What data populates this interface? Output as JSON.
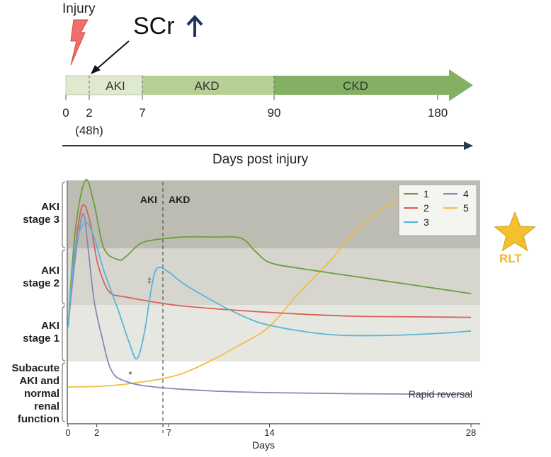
{
  "timeline": {
    "injury_label": "Injury",
    "scr_label": "SCr",
    "phases": [
      "AKI",
      "AKD",
      "CKD"
    ],
    "ticks": [
      "0",
      "2",
      "7",
      "90",
      "180"
    ],
    "tick_note": "(48h)",
    "axis_caption": "Days post injury",
    "colors": {
      "aki": "#dfe9d0",
      "akd": "#b5cf95",
      "ckd": "#84b063",
      "lightning": "#ee6f6b",
      "up_arrow": "#1d3560"
    }
  },
  "chart": {
    "stage_labels": {
      "aki3": [
        "AKI",
        "stage 3"
      ],
      "aki2": [
        "AKI",
        "stage 2"
      ],
      "aki1": [
        "AKI",
        "stage 1"
      ],
      "sub": [
        "Subacute",
        "AKI and",
        "normal",
        "renal",
        "function"
      ]
    },
    "divider_labels": {
      "left": "AKI",
      "right": "AKD"
    },
    "annotations": {
      "star_marker": "*",
      "dagger_marker": "‡",
      "rapid_reversal": "Rapid reversal"
    },
    "rlt_label": "RLT",
    "star_color": "#f5c02d"
  },
  "chart_data": {
    "type": "line",
    "xlabel": "Days",
    "x_ticks": [
      0,
      2,
      7,
      14,
      28
    ],
    "xlim": [
      0,
      28.5
    ],
    "y_bands": [
      "Subacute AKI and normal renal function",
      "AKI stage 1",
      "AKI stage 2",
      "AKI stage 3"
    ],
    "vertical_line_day": 7,
    "series": [
      {
        "name": "1",
        "color": "#6b9e3c",
        "x": [
          0,
          0.5,
          1.2,
          1.8,
          2.5,
          3.5,
          4,
          5,
          6,
          7,
          8,
          10,
          12,
          13,
          14,
          16,
          20,
          24,
          28
        ],
        "y": [
          0.6,
          2.3,
          3.2,
          2.8,
          2.0,
          1.8,
          1.85,
          2.08,
          2.15,
          2.18,
          2.2,
          2.2,
          2.18,
          1.95,
          1.75,
          1.65,
          1.5,
          1.35,
          1.2
        ]
      },
      {
        "name": "2",
        "color": "#d9605a",
        "x": [
          0,
          0.5,
          1.0,
          1.5,
          2,
          2.5,
          3,
          4,
          6,
          8,
          12,
          16,
          20,
          24,
          28
        ],
        "y": [
          0.6,
          2.0,
          2.75,
          2.5,
          1.8,
          1.4,
          1.2,
          1.14,
          1.05,
          0.98,
          0.9,
          0.84,
          0.8,
          0.79,
          0.78
        ]
      },
      {
        "name": "3",
        "color": "#55b6d8",
        "x": [
          0,
          0.5,
          1.2,
          1.8,
          2.5,
          3.5,
          4.3,
          4.8,
          5.3,
          5.8,
          6.2,
          7,
          8,
          10,
          12,
          14,
          18,
          22,
          26,
          28
        ],
        "y": [
          0.6,
          2.0,
          2.45,
          2.2,
          1.6,
          0.9,
          0.3,
          0.05,
          0.5,
          1.3,
          1.65,
          1.58,
          1.38,
          1.08,
          0.82,
          0.64,
          0.48,
          0.46,
          0.5,
          0.54
        ]
      },
      {
        "name": "4",
        "color": "#8c86b8",
        "x": [
          0,
          0.4,
          0.8,
          1.1,
          1.4,
          1.8,
          2.3,
          3,
          4,
          6,
          10,
          14,
          20,
          28
        ],
        "y": [
          0.6,
          1.6,
          2.35,
          2.6,
          2.0,
          1.1,
          0.5,
          -0.15,
          -0.35,
          -0.45,
          -0.52,
          -0.55,
          -0.57,
          -0.58
        ]
      },
      {
        "name": "5",
        "color": "#f2bd46",
        "x": [
          0,
          2,
          4,
          7,
          9,
          12,
          14,
          16,
          18,
          20,
          22,
          24,
          26,
          28
        ],
        "y": [
          -0.45,
          -0.44,
          -0.4,
          -0.28,
          -0.1,
          0.3,
          0.62,
          1.2,
          1.72,
          2.3,
          2.72,
          2.9,
          2.94,
          2.95
        ]
      }
    ]
  }
}
